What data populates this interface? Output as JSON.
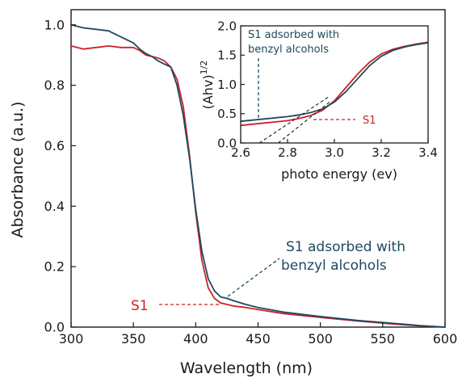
{
  "chart_data": [
    {
      "type": "line",
      "xlabel": "Wavelength (nm)",
      "ylabel": "Absorbance (a.u.)",
      "xlim": [
        300,
        600
      ],
      "ylim": [
        0.0,
        1.05
      ],
      "xticks": [
        "300",
        "350",
        "400",
        "450",
        "500",
        "550",
        "600"
      ],
      "yticks": [
        "0.0",
        "0.2",
        "0.4",
        "0.6",
        "0.8",
        "1.0"
      ],
      "grid": false,
      "series": [
        {
          "name": "S1",
          "color": "#cc2229",
          "x": [
            300,
            310,
            320,
            330,
            340,
            350,
            355,
            360,
            365,
            370,
            375,
            380,
            385,
            390,
            395,
            400,
            405,
            410,
            415,
            420,
            425,
            430,
            440,
            450,
            470,
            500,
            530,
            560,
            580,
            600
          ],
          "y": [
            0.93,
            0.92,
            0.925,
            0.93,
            0.925,
            0.925,
            0.915,
            0.9,
            0.895,
            0.89,
            0.88,
            0.86,
            0.82,
            0.73,
            0.57,
            0.38,
            0.22,
            0.13,
            0.095,
            0.08,
            0.075,
            0.07,
            0.065,
            0.058,
            0.045,
            0.032,
            0.02,
            0.01,
            0.004,
            0.0
          ]
        },
        {
          "name": "S1 adsorbed with benzyl alcohols",
          "color": "#1d4a5e",
          "x": [
            300,
            310,
            320,
            330,
            340,
            350,
            355,
            360,
            365,
            370,
            375,
            380,
            385,
            390,
            395,
            400,
            405,
            410,
            415,
            420,
            425,
            430,
            440,
            450,
            470,
            500,
            530,
            560,
            580,
            600
          ],
          "y": [
            1.0,
            0.99,
            0.985,
            0.98,
            0.96,
            0.94,
            0.92,
            0.905,
            0.895,
            0.88,
            0.87,
            0.86,
            0.8,
            0.7,
            0.56,
            0.39,
            0.25,
            0.16,
            0.12,
            0.1,
            0.095,
            0.088,
            0.075,
            0.065,
            0.05,
            0.035,
            0.022,
            0.012,
            0.005,
            0.0
          ]
        }
      ],
      "annotations": [
        {
          "text": "S1",
          "color": "#cc2229",
          "points_to": [
            425,
            0.075
          ]
        },
        {
          "text": "S1 adsorbed with",
          "color": "#1d4a5e",
          "points_to": [
            428,
            0.1
          ]
        },
        {
          "text": "benzyl alcohols",
          "color": "#1d4a5e"
        }
      ]
    },
    {
      "type": "line",
      "xlabel": "photo energy (ev)",
      "ylabel": "(Ahv)",
      "ylabel_superscript": "1/2",
      "xlim": [
        2.6,
        3.4
      ],
      "ylim": [
        0.0,
        2.0
      ],
      "xticks": [
        "2.6",
        "2.8",
        "3.0",
        "3.2",
        "3.4"
      ],
      "yticks": [
        "0.0",
        "0.5",
        "1.0",
        "1.5",
        "2.0"
      ],
      "grid": false,
      "series": [
        {
          "name": "S1",
          "color": "#cc2229",
          "x": [
            2.6,
            2.65,
            2.7,
            2.75,
            2.8,
            2.85,
            2.9,
            2.95,
            3.0,
            3.05,
            3.1,
            3.15,
            3.2,
            3.25,
            3.3,
            3.35,
            3.4
          ],
          "y": [
            0.3,
            0.32,
            0.34,
            0.36,
            0.38,
            0.42,
            0.47,
            0.56,
            0.72,
            0.95,
            1.18,
            1.38,
            1.52,
            1.6,
            1.65,
            1.69,
            1.72
          ]
        },
        {
          "name": "S1 adsorbed with benzyl alcohols",
          "color": "#1d4a5e",
          "x": [
            2.6,
            2.65,
            2.7,
            2.75,
            2.8,
            2.85,
            2.9,
            2.95,
            3.0,
            3.05,
            3.1,
            3.15,
            3.2,
            3.25,
            3.3,
            3.35,
            3.4
          ],
          "y": [
            0.37,
            0.39,
            0.41,
            0.43,
            0.45,
            0.48,
            0.52,
            0.58,
            0.7,
            0.88,
            1.1,
            1.32,
            1.48,
            1.58,
            1.64,
            1.68,
            1.71
          ]
        }
      ],
      "tangent_lines": [
        {
          "color": "#1a1a1a",
          "x": [
            2.68,
            2.98
          ],
          "y": [
            0.0,
            0.8
          ]
        },
        {
          "color": "#1a1a1a",
          "x": [
            2.76,
            2.98
          ],
          "y": [
            0.0,
            0.7
          ]
        }
      ],
      "annotations": [
        {
          "text": "S1 adsorbed with",
          "color": "#1d4a5e",
          "points_to": [
            2.65,
            0.38
          ]
        },
        {
          "text": "benzyl alcohols",
          "color": "#1d4a5e"
        },
        {
          "text": "S1",
          "color": "#cc2229",
          "points_to": [
            2.9,
            0.45
          ]
        }
      ]
    }
  ]
}
